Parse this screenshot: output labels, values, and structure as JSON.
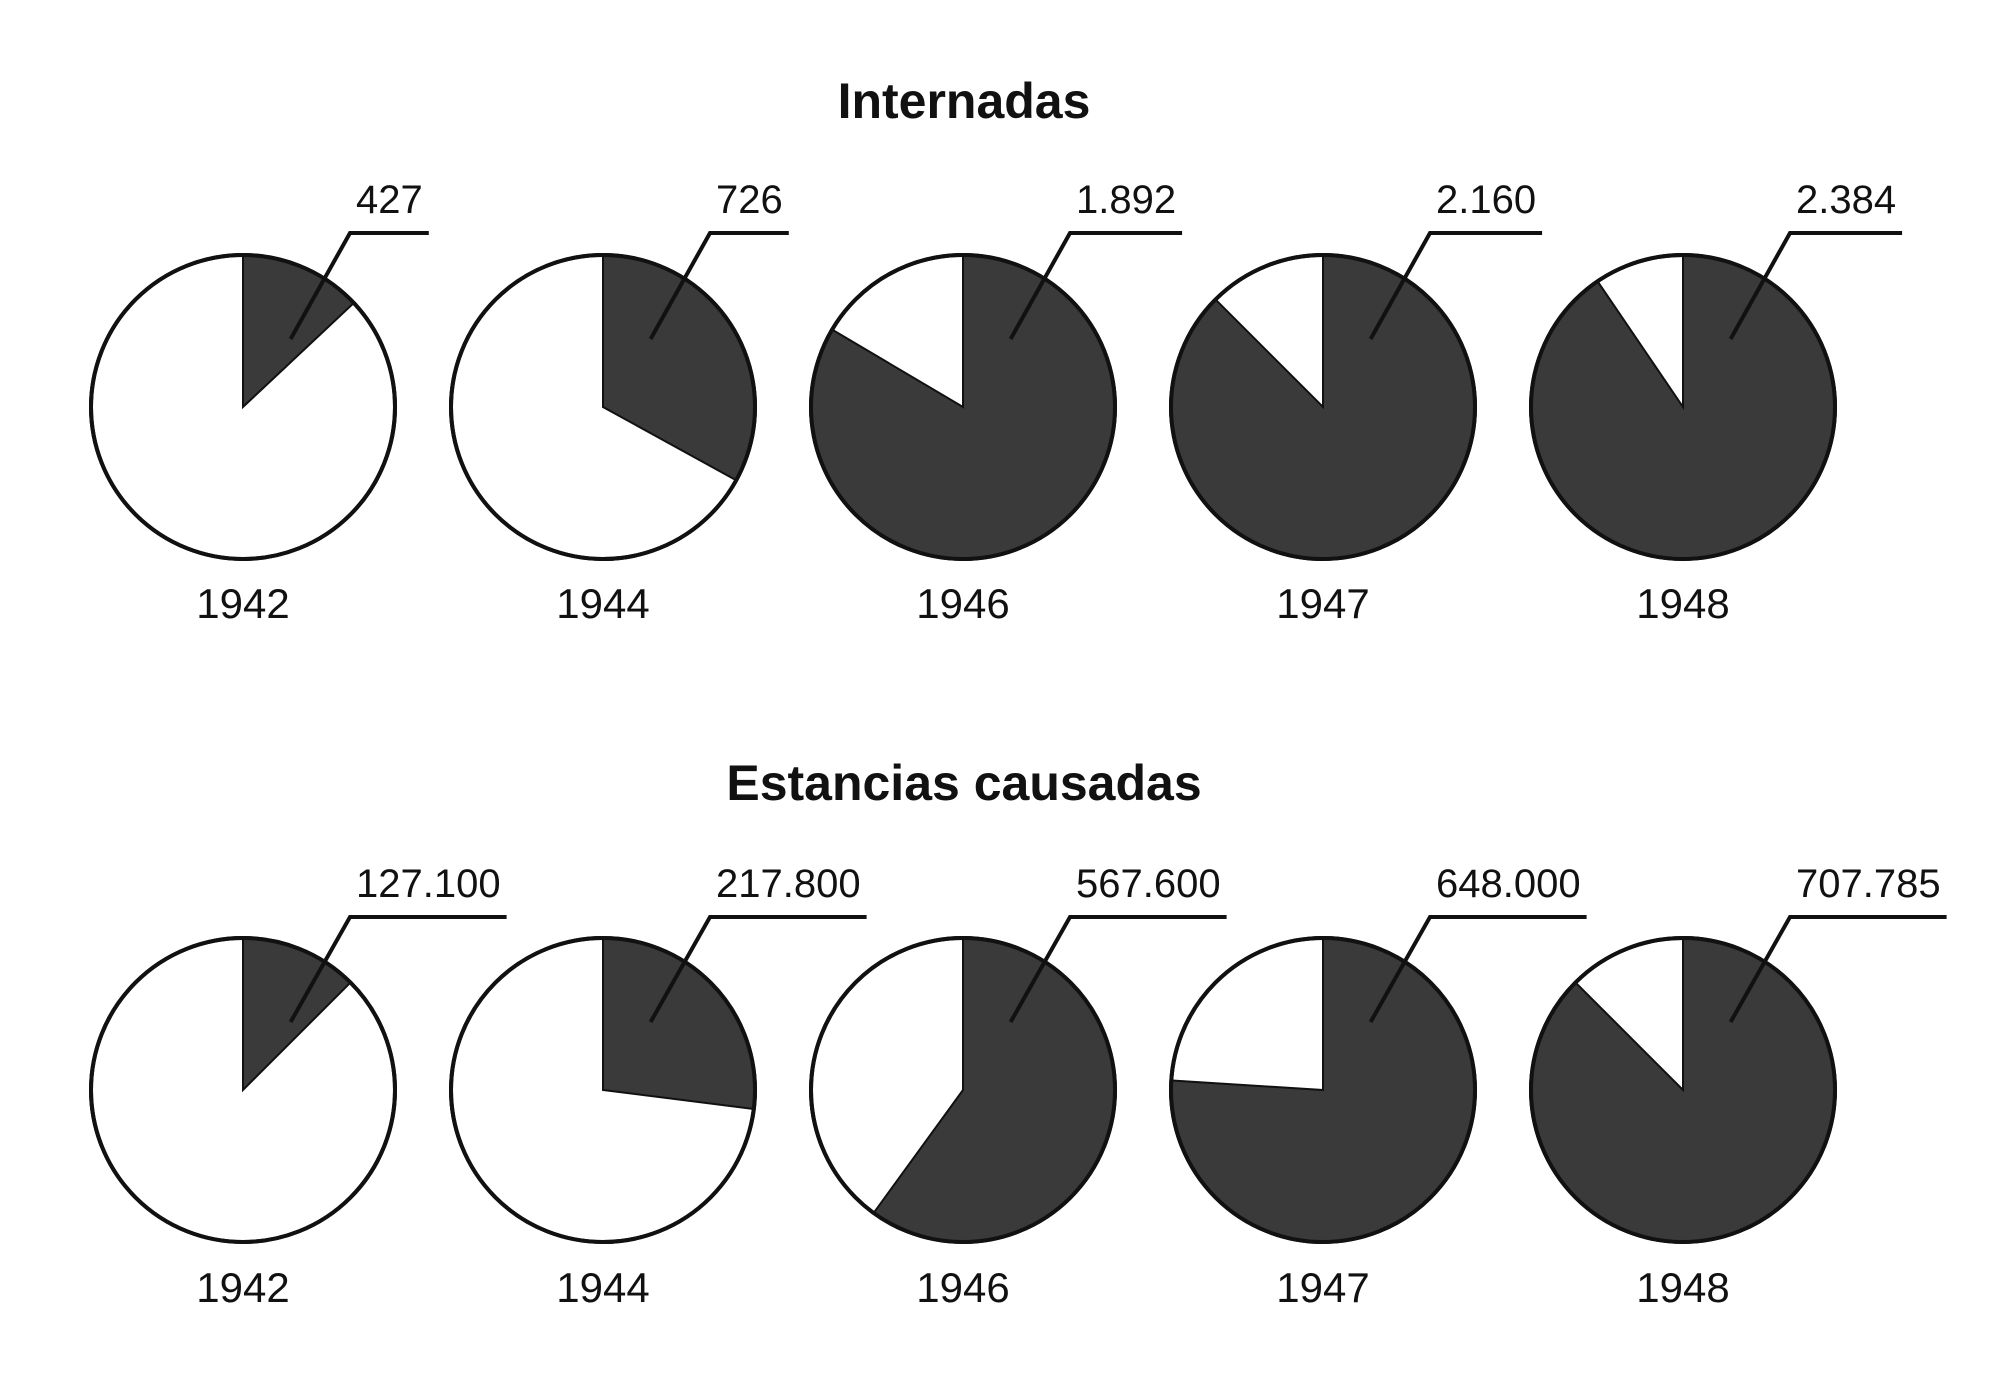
{
  "chart_data": [
    {
      "type": "pie",
      "title": "Internadas",
      "series_unit": "filled slice shows the yearly value as a share of a reference total",
      "points": [
        {
          "year": "1942",
          "label": "427",
          "value": 427,
          "fraction": 0.13
        },
        {
          "year": "1944",
          "label": "726",
          "value": 726,
          "fraction": 0.33
        },
        {
          "year": "1946",
          "label": "1.892",
          "value": 1892,
          "fraction": 0.835
        },
        {
          "year": "1947",
          "label": "2.160",
          "value": 2160,
          "fraction": 0.875
        },
        {
          "year": "1948",
          "label": "2.384",
          "value": 2384,
          "fraction": 0.905
        }
      ]
    },
    {
      "type": "pie",
      "title": "Estancias causadas",
      "points": [
        {
          "year": "1942",
          "label": "127.100",
          "value": 127100,
          "fraction": 0.125
        },
        {
          "year": "1944",
          "label": "217.800",
          "value": 217800,
          "fraction": 0.27
        },
        {
          "year": "1946",
          "label": "567.600",
          "value": 567600,
          "fraction": 0.6
        },
        {
          "year": "1947",
          "label": "648.000",
          "value": 648000,
          "fraction": 0.76
        },
        {
          "year": "1948",
          "label": "707.785",
          "value": 707785,
          "fraction": 0.875
        }
      ]
    }
  ],
  "colors": {
    "filled": "#3a3a3a",
    "empty": "#ffffff",
    "stroke": "#111111"
  }
}
